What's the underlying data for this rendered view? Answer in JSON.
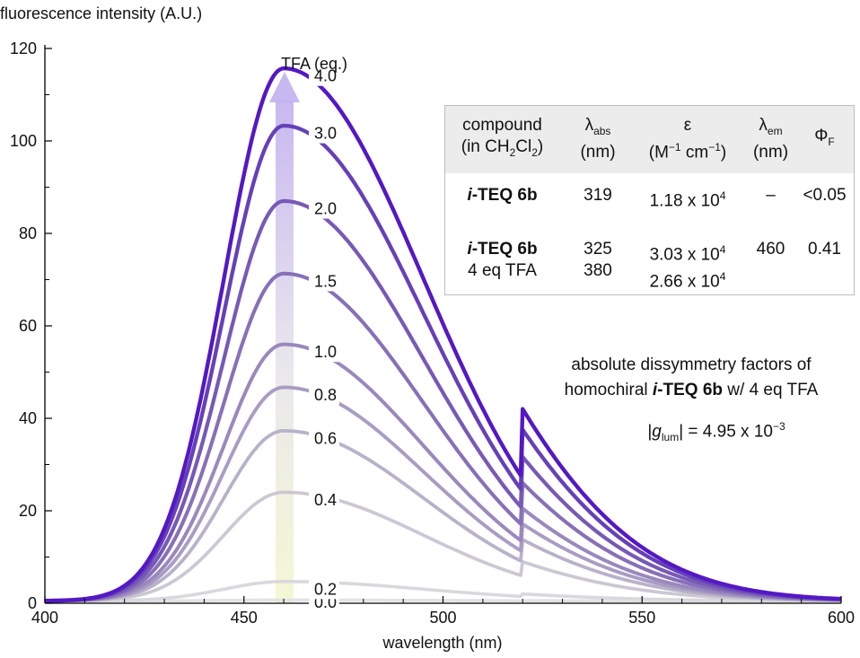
{
  "chart_data": {
    "type": "line",
    "ylabel": "fluorescence intensity (A.U.)",
    "xlabel": "wavelength (nm)",
    "xlim": [
      400,
      600
    ],
    "ylim": [
      0,
      120
    ],
    "x_ticks": [
      "400",
      "450",
      "500",
      "550",
      "600"
    ],
    "y_ticks": [
      "0",
      "20",
      "40",
      "60",
      "80",
      "100",
      "120"
    ],
    "legend_title": "TFA (eq.)",
    "arrow_direction": "upward (increasing TFA)",
    "grid": false,
    "series": [
      {
        "name": "0.0",
        "peak_x": 460,
        "peak_y": 0.2,
        "color": "#e2e2e5"
      },
      {
        "name": "0.2",
        "peak_x": 460,
        "peak_y": 4.2,
        "color": "#d9d8dd"
      },
      {
        "name": "0.4",
        "peak_x": 460,
        "peak_y": 23.5,
        "color": "#cbc8d3"
      },
      {
        "name": "0.6",
        "peak_x": 460,
        "peak_y": 36.8,
        "color": "#b9b1c9"
      },
      {
        "name": "0.8",
        "peak_x": 460,
        "peak_y": 46.2,
        "color": "#a99cc3"
      },
      {
        "name": "1.0",
        "peak_x": 460,
        "peak_y": 55.5,
        "color": "#9a88bd"
      },
      {
        "name": "1.5",
        "peak_x": 460,
        "peak_y": 70.8,
        "color": "#8870b8"
      },
      {
        "name": "2.0",
        "peak_x": 460,
        "peak_y": 86.5,
        "color": "#7759b6"
      },
      {
        "name": "3.0",
        "peak_x": 460,
        "peak_y": 102.8,
        "color": "#6640b8"
      },
      {
        "name": "4.0",
        "peak_x": 460,
        "peak_y": 115.2,
        "color": "#5418c4"
      }
    ]
  },
  "table": {
    "headers": {
      "compound": "compound",
      "compound_sub_pre": "(in CH",
      "compound_sub_2a": "2",
      "compound_sub_mid": "Cl",
      "compound_sub_2b": "2",
      "compound_sub_post": ")",
      "labs_sym": "λ",
      "labs_sub": "abs",
      "labs_unit": "(nm)",
      "eps_sym": "ε",
      "eps_unit_pre": "(M",
      "eps_unit_sup1": "−1",
      "eps_unit_mid": " cm",
      "eps_unit_sup2": "−1",
      "eps_unit_post": ")",
      "lem_sym": "λ",
      "lem_sub": "em",
      "lem_unit": "(nm)",
      "phi_sym": "Φ",
      "phi_sub": "F"
    },
    "row1": {
      "compound_i": "i",
      "compound_rest": "-TEQ 6b",
      "labs": "319",
      "eps_base": "1.18 x 10",
      "eps_exp": "4",
      "lem": "–",
      "phi": "<0.05"
    },
    "row2": {
      "compound_i": "i",
      "compound_rest": "-TEQ 6b",
      "compound_sub": "4 eq TFA",
      "labs_1": "325",
      "labs_2": "380",
      "eps1_base": "3.03 x 10",
      "eps1_exp": "4",
      "eps2_base": "2.66 x 10",
      "eps2_exp": "4",
      "lem": "460",
      "phi": "0.41"
    }
  },
  "annotation": {
    "line1": "absolute dissymmetry factors of",
    "line2_pre": "homochiral ",
    "line2_i": "i",
    "line2_bold": "-TEQ 6b",
    "line2_post": " w/ 4 eq TFA",
    "g_open": "|",
    "g_sym": "g",
    "g_sub": "lum",
    "g_close": "|",
    "g_eq": " = 4.95 x 10",
    "g_exp": "−3"
  }
}
